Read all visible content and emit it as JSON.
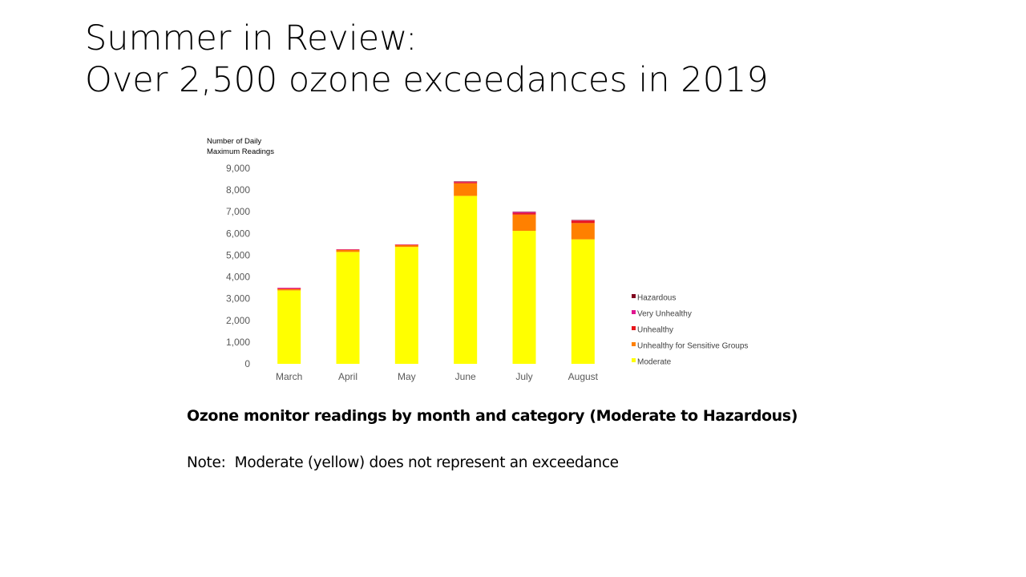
{
  "slide": {
    "title_line1": "Summer in Review:",
    "title_line2": "Over 2,500 ozone exceedances in 2019",
    "caption": "Ozone monitor readings by month and category (Moderate to Hazardous)",
    "note": "Note:  Moderate (yellow) does not represent an exceedance"
  },
  "chart_data": {
    "type": "bar",
    "stacked": true,
    "ylabel_line1": "Number of Daily",
    "ylabel_line2": "Maximum Readings",
    "ylim": [
      0,
      9000
    ],
    "yticks": [
      0,
      1000,
      2000,
      3000,
      4000,
      5000,
      6000,
      7000,
      8000,
      9000
    ],
    "ytick_labels": [
      "0",
      "1,000",
      "2,000",
      "3,000",
      "4,000",
      "5,000",
      "6,000",
      "7,000",
      "8,000",
      "9,000"
    ],
    "categories": [
      "March",
      "April",
      "May",
      "June",
      "July",
      "August"
    ],
    "grid": false,
    "legend_position": "right",
    "series": [
      {
        "name": "Moderate",
        "color": "#ffff00",
        "values": [
          3380,
          5150,
          5380,
          7730,
          6120,
          5730
        ]
      },
      {
        "name": "Unhealthy for Sensitive Groups",
        "color": "#ff8000",
        "values": [
          70,
          100,
          100,
          580,
          750,
          750
        ]
      },
      {
        "name": "Unhealthy",
        "color": "#e8161b",
        "values": [
          10,
          10,
          5,
          50,
          70,
          110
        ]
      },
      {
        "name": "Very Unhealthy",
        "color": "#e0158f",
        "values": [
          40,
          10,
          5,
          20,
          50,
          20
        ]
      },
      {
        "name": "Hazardous",
        "color": "#80001e",
        "values": [
          0,
          0,
          0,
          20,
          10,
          10
        ]
      }
    ],
    "legend_order": [
      "Hazardous",
      "Very Unhealthy",
      "Unhealthy",
      "Unhealthy for Sensitive Groups",
      "Moderate"
    ]
  }
}
